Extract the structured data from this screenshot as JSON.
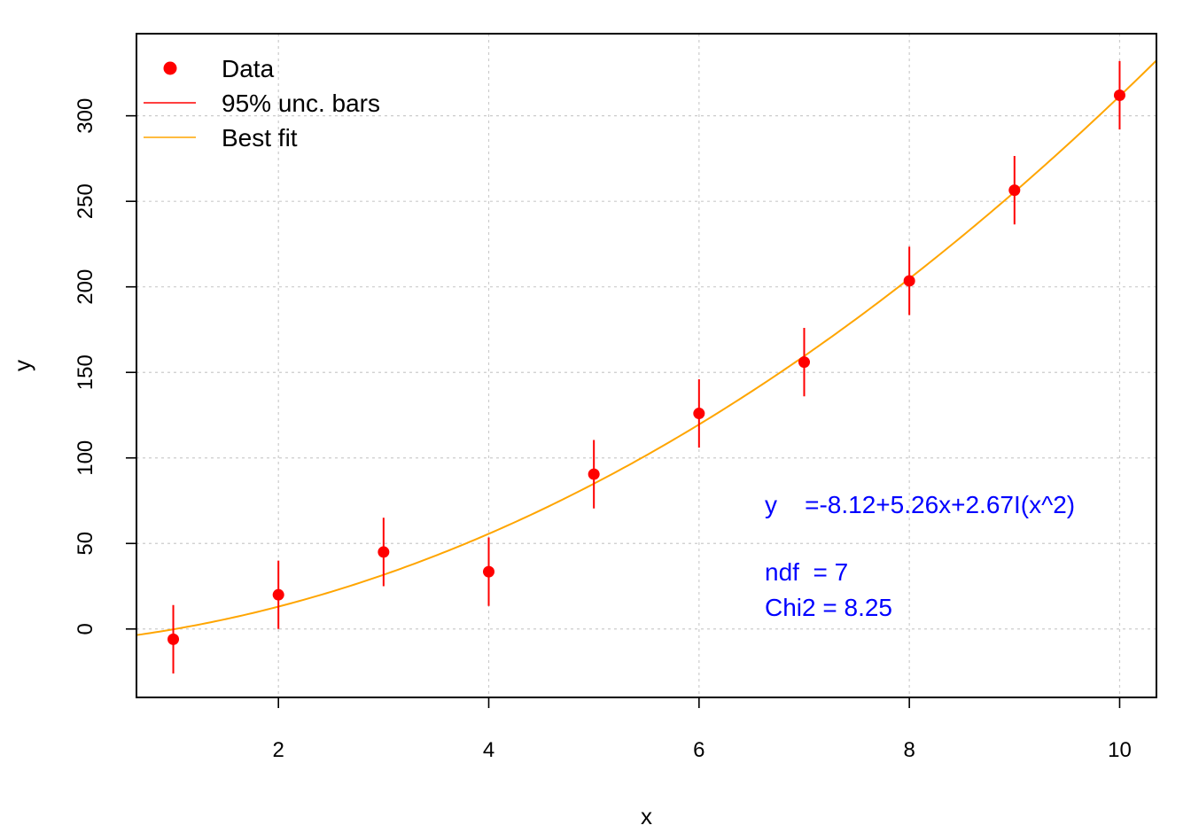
{
  "chart_data": {
    "type": "scatter",
    "x_label": "x",
    "y_label": "y",
    "x_range": [
      0.65,
      10.35
    ],
    "y_range": [
      -40,
      348
    ],
    "x_ticks": [
      2,
      4,
      6,
      8,
      10
    ],
    "y_ticks": [
      0,
      50,
      100,
      150,
      200,
      250,
      300
    ],
    "grid": true,
    "legend": {
      "position": "top-left",
      "entries": [
        {
          "label": "Data",
          "kind": "point",
          "color": "#ff0000"
        },
        {
          "label": "95% unc. bars",
          "kind": "line",
          "color": "#ff0000"
        },
        {
          "label": "Best fit",
          "kind": "line",
          "color": "#ffa500"
        }
      ]
    },
    "series": [
      {
        "name": "Data",
        "color": "#ff0000",
        "x": [
          1,
          2,
          3,
          4,
          5,
          6,
          7,
          8,
          9,
          10
        ],
        "y": [
          -6,
          20,
          45,
          33.5,
          90.5,
          126,
          156,
          203.5,
          256.5,
          312
        ],
        "error": 20
      }
    ],
    "fit": {
      "name": "Best fit",
      "color": "#ffa500",
      "coefficients": {
        "intercept": -8.12,
        "linear": 5.26,
        "quadratic": 2.67
      }
    },
    "annotations": {
      "color": "#0000ff",
      "equation": "y    =-8.12+5.26x+2.67I(x^2)",
      "ndf": "ndf  = 7",
      "chi2": "Chi2 = 8.25"
    }
  }
}
